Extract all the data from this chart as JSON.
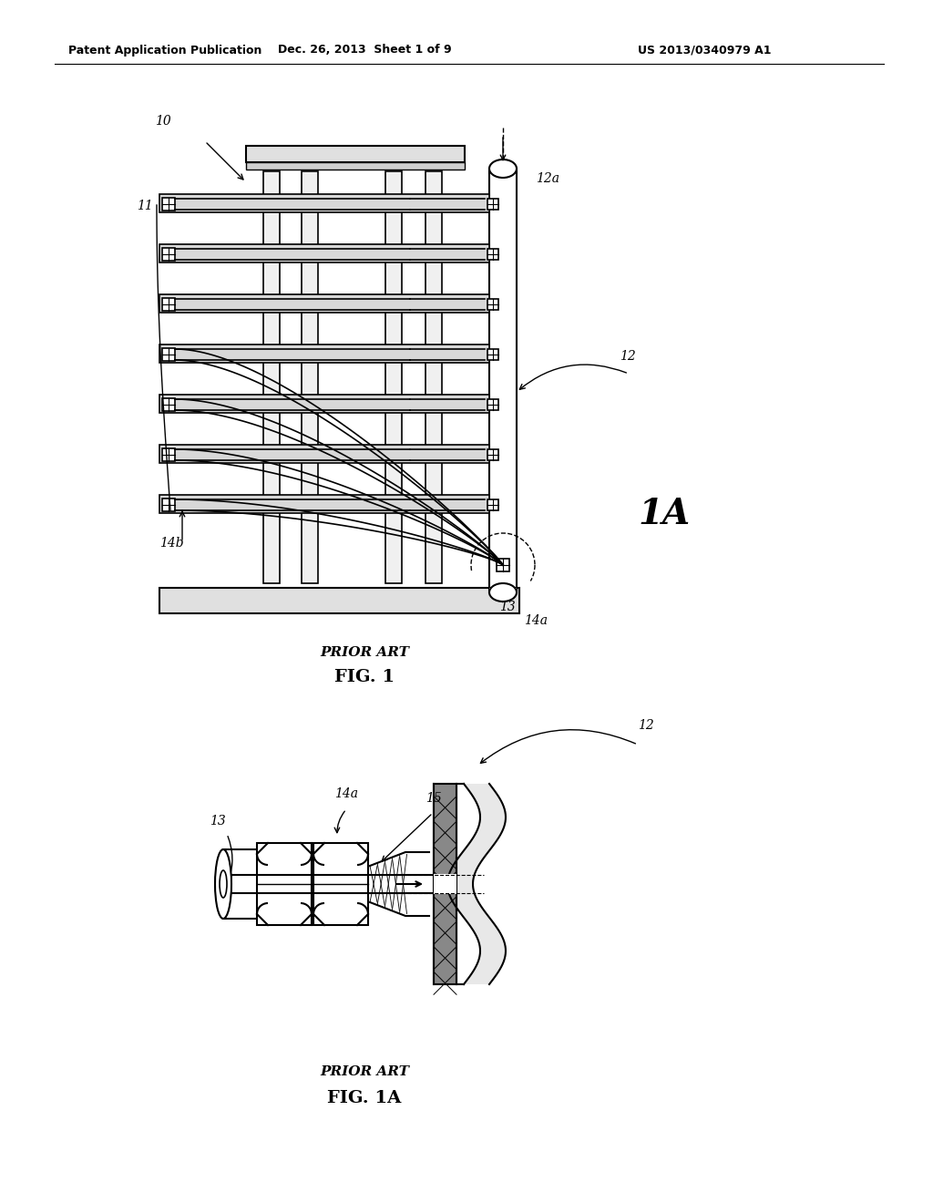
{
  "bg_color": "#ffffff",
  "line_color": "#000000",
  "header_left": "Patent Application Publication",
  "header_mid": "Dec. 26, 2013  Sheet 1 of 9",
  "header_right": "US 2013/0340979 A1",
  "fig1_label": "FIG. 1",
  "fig1_sublabel": "PRIOR ART",
  "fig1a_label": "FIG. 1A",
  "fig1a_sublabel": "PRIOR ART"
}
